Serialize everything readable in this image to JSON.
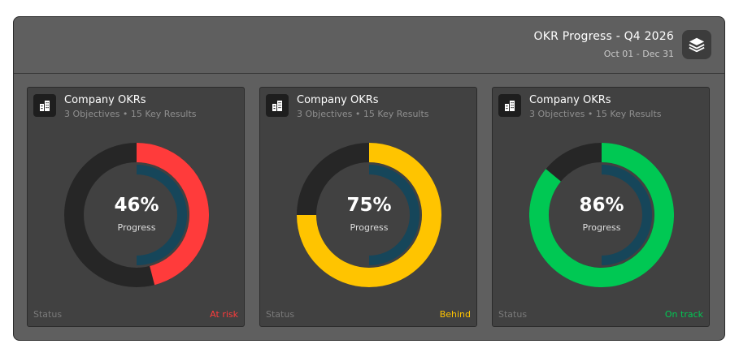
{
  "header": {
    "title": "OKR Progress - Q4 2026",
    "dates": "Oct 01 - Dec 31",
    "icon": "layers-icon"
  },
  "colors": {
    "track": "#262626",
    "inner_ring": "#16465a",
    "at_risk": "#ff3b3b",
    "behind": "#ffc400",
    "on_track": "#00c853"
  },
  "cards": [
    {
      "title": "Company OKRs",
      "subtitle": "3 Objectives • 15 Key Results",
      "percent_label": "46%",
      "progress": 46,
      "progress_caption": "Progress",
      "status_label": "Status",
      "status_value": "At risk",
      "status_color": "#ff3b3b",
      "icon": "building-icon"
    },
    {
      "title": "Company OKRs",
      "subtitle": "3 Objectives • 15 Key Results",
      "percent_label": "75%",
      "progress": 75,
      "progress_caption": "Progress",
      "status_label": "Status",
      "status_value": "Behind",
      "status_color": "#ffc400",
      "icon": "building-icon"
    },
    {
      "title": "Company OKRs",
      "subtitle": "3 Objectives • 15 Key Results",
      "percent_label": "86%",
      "progress": 86,
      "progress_caption": "Progress",
      "status_label": "Status",
      "status_value": "On track",
      "status_color": "#00c853",
      "icon": "building-icon"
    }
  ]
}
